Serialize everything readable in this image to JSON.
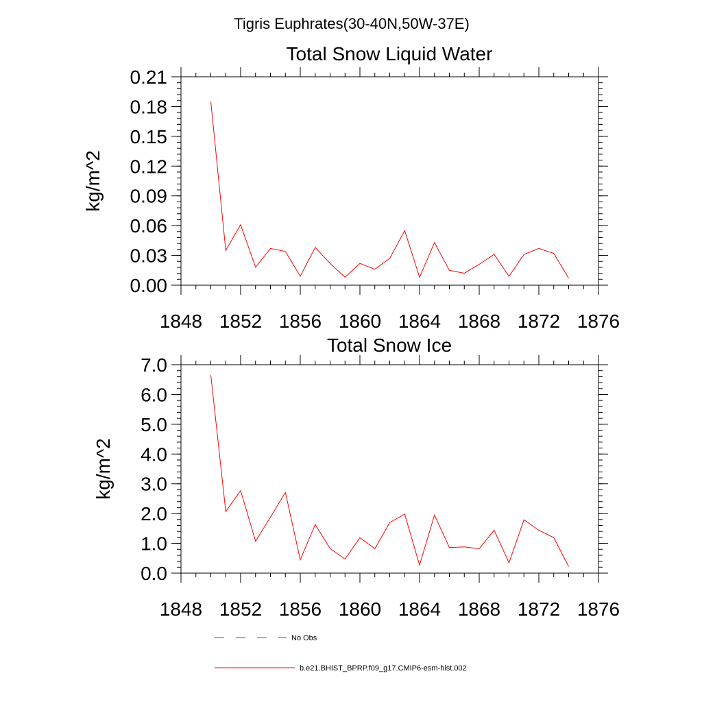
{
  "suptitle": "Tigris Euphrates(30-40N,50W-37E)",
  "chart_data": [
    {
      "type": "line",
      "title": "Total Snow Liquid Water",
      "xlabel": "",
      "ylabel": "kg/m^2",
      "xlim": [
        1848,
        1876
      ],
      "ylim": [
        0,
        0.21
      ],
      "xticks": [
        "1848",
        "1852",
        "1856",
        "1860",
        "1864",
        "1868",
        "1872",
        "1876"
      ],
      "xtick_values": [
        1848,
        1852,
        1856,
        1860,
        1864,
        1868,
        1872,
        1876
      ],
      "yticks": [
        "0.00",
        "0.03",
        "0.06",
        "0.09",
        "0.12",
        "0.15",
        "0.18",
        "0.21"
      ],
      "ytick_values": [
        0,
        0.03,
        0.06,
        0.09,
        0.12,
        0.15,
        0.18,
        0.21
      ],
      "grid": false,
      "series": [
        {
          "name": "b.e21.BHIST_BPRP.f09_g17.CMIP6-esm-hist.002",
          "color": "#ff0000",
          "x": [
            1850,
            1851,
            1852,
            1853,
            1854,
            1855,
            1856,
            1857,
            1858,
            1859,
            1860,
            1861,
            1862,
            1863,
            1864,
            1865,
            1866,
            1867,
            1868,
            1869,
            1870,
            1871,
            1872,
            1873,
            1874
          ],
          "y": [
            0.185,
            0.035,
            0.061,
            0.018,
            0.037,
            0.034,
            0.009,
            0.038,
            0.022,
            0.008,
            0.022,
            0.016,
            0.027,
            0.055,
            0.008,
            0.043,
            0.015,
            0.012,
            0.021,
            0.031,
            0.009,
            0.031,
            0.037,
            0.032,
            0.007
          ]
        }
      ]
    },
    {
      "type": "line",
      "title": "Total Snow Ice",
      "xlabel": "",
      "ylabel": "kg/m^2",
      "xlim": [
        1848,
        1876
      ],
      "ylim": [
        0,
        7.0
      ],
      "xticks": [
        "1848",
        "1852",
        "1856",
        "1860",
        "1864",
        "1868",
        "1872",
        "1876"
      ],
      "xtick_values": [
        1848,
        1852,
        1856,
        1860,
        1864,
        1868,
        1872,
        1876
      ],
      "yticks": [
        "0.0",
        "1.0",
        "2.0",
        "3.0",
        "4.0",
        "5.0",
        "6.0",
        "7.0"
      ],
      "ytick_values": [
        0,
        1,
        2,
        3,
        4,
        5,
        6,
        7
      ],
      "grid": false,
      "series": [
        {
          "name": "b.e21.BHIST_BPRP.f09_g17.CMIP6-esm-hist.002",
          "color": "#ff0000",
          "x": [
            1850,
            1851,
            1852,
            1853,
            1854,
            1855,
            1856,
            1857,
            1858,
            1859,
            1860,
            1861,
            1862,
            1863,
            1864,
            1865,
            1866,
            1867,
            1868,
            1869,
            1870,
            1871,
            1872,
            1873,
            1874
          ],
          "y": [
            6.65,
            2.07,
            2.77,
            1.07,
            1.88,
            2.71,
            0.45,
            1.63,
            0.83,
            0.47,
            1.19,
            0.82,
            1.7,
            1.98,
            0.27,
            1.95,
            0.86,
            0.88,
            0.82,
            1.44,
            0.35,
            1.79,
            1.44,
            1.19,
            0.22
          ]
        }
      ]
    }
  ],
  "legend": {
    "placement": "bottom",
    "items": [
      {
        "label": "No Obs",
        "style": "dashed",
        "color": "#4a5580"
      },
      {
        "label": "b.e21.BHIST_BPRP.f09_g17.CMIP6-esm-hist.002",
        "style": "solid",
        "color": "#ff0000"
      }
    ]
  }
}
